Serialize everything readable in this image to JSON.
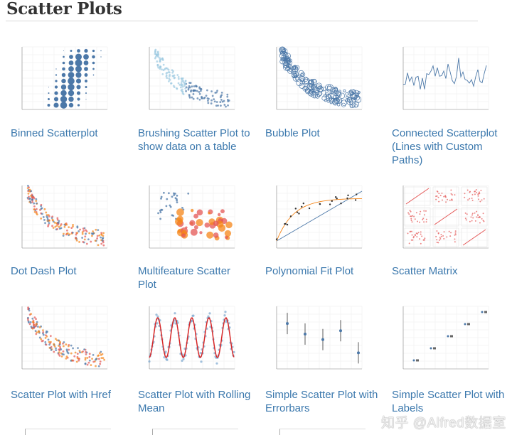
{
  "page": {
    "title": "Scatter Plots"
  },
  "gallery": [
    {
      "label": "Binned Scatterplot"
    },
    {
      "label": "Brushing Scatter Plot to show data on a table"
    },
    {
      "label": "Bubble Plot"
    },
    {
      "label": "Connected Scatterplot (Lines with Custom Paths)"
    },
    {
      "label": "Dot Dash Plot"
    },
    {
      "label": "Multifeature Scatter Plot"
    },
    {
      "label": "Polynomial Fit Plot"
    },
    {
      "label": "Scatter Matrix"
    },
    {
      "label": "Scatter Plot with Href"
    },
    {
      "label": "Scatter Plot with Rolling Mean"
    },
    {
      "label": "Simple Scatter Plot with Errorbars"
    },
    {
      "label": "Simple Scatter Plot with Labels"
    }
  ],
  "watermark": "知乎 @Alfred数据室",
  "colors": {
    "link": "#3b78ad",
    "accent": "#4c78a8",
    "orange": "#e45756"
  }
}
